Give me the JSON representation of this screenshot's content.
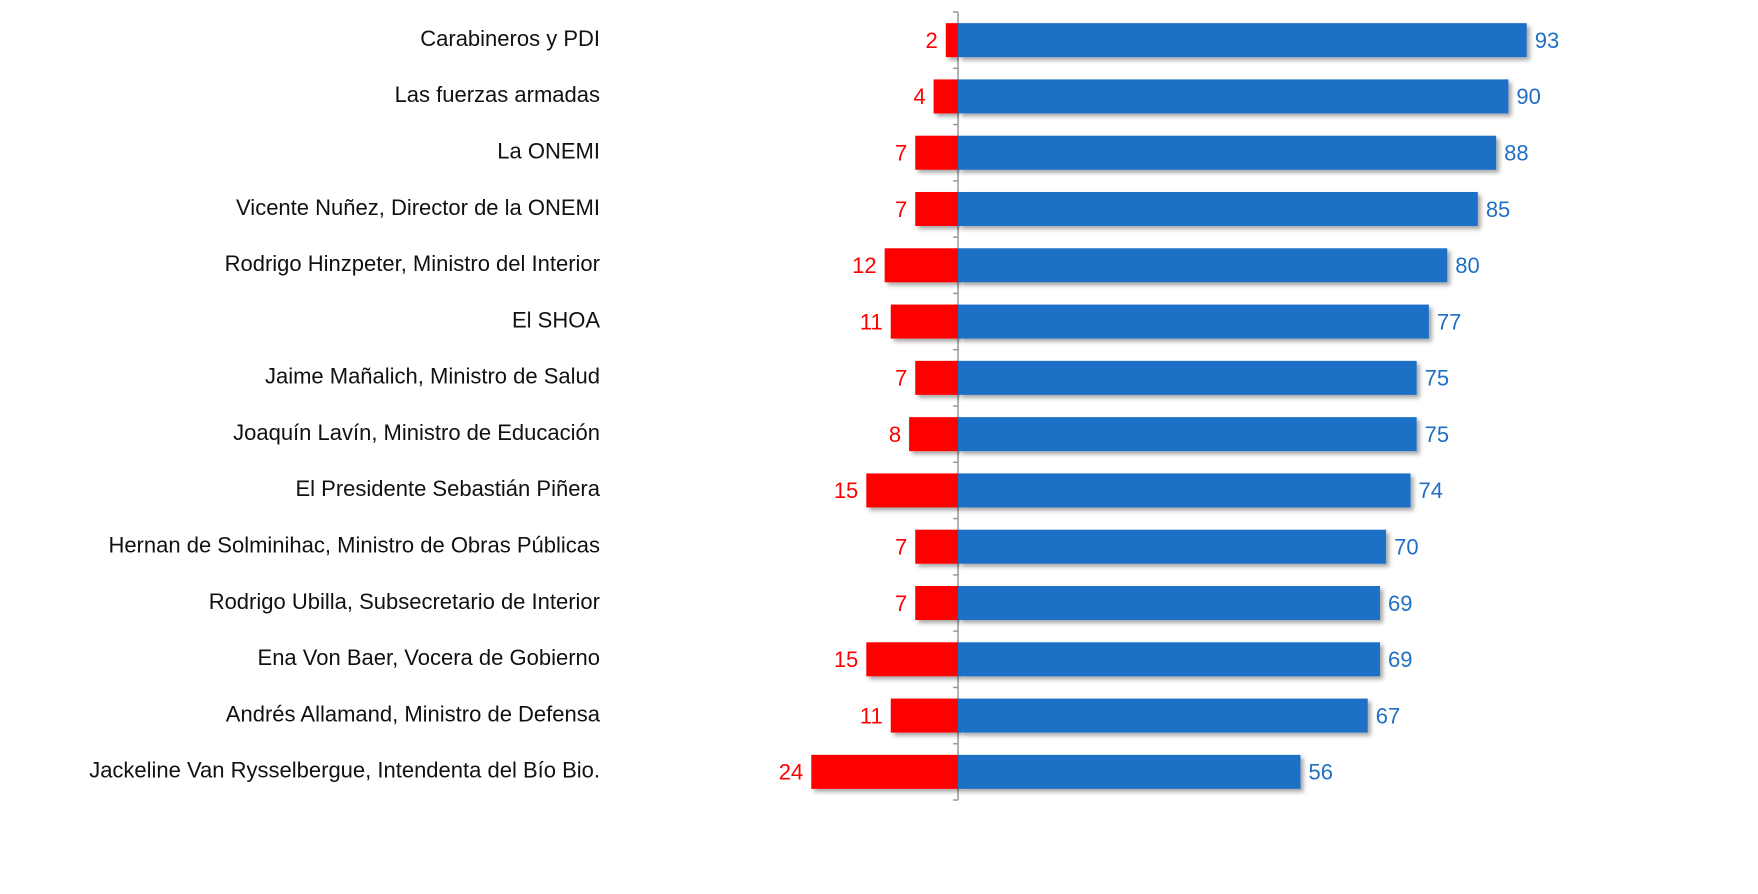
{
  "chart_data": {
    "type": "bar",
    "orientation": "horizontal",
    "categories": [
      "Carabineros y PDI",
      "Las fuerzas armadas",
      "La ONEMI",
      "Vicente Nuñez, Director de la ONEMI",
      "Rodrigo Hinzpeter, Ministro del Interior",
      "El SHOA",
      "Jaime Mañalich, Ministro de Salud",
      "Joaquín Lavín, Ministro de Educación",
      "El Presidente Sebastián Piñera",
      "Hernan de Solminihac, Ministro de Obras Públicas",
      "Rodrigo Ubilla, Subsecretario de Interior",
      "Ena Von Baer, Vocera de Gobierno",
      "Andrés Allamand, Ministro de Defensa",
      "Jackeline Van Rysselbergue, Intendenta del Bío Bio."
    ],
    "series": [
      {
        "color": "#ff0000",
        "values": [
          -2,
          -4,
          -7,
          -7,
          -12,
          -11,
          -7,
          -8,
          -15,
          -7,
          -7,
          -15,
          -11,
          -24
        ],
        "value_labels": [
          "2",
          "4",
          "7",
          "7",
          "12",
          "11",
          "7",
          "8",
          "15",
          "7",
          "7",
          "15",
          "11",
          "24"
        ]
      },
      {
        "color": "#1f6fc5",
        "values": [
          93,
          90,
          88,
          85,
          80,
          77,
          75,
          75,
          74,
          70,
          69,
          69,
          67,
          56
        ]
      }
    ],
    "xlim": [
      -35,
      130
    ]
  }
}
